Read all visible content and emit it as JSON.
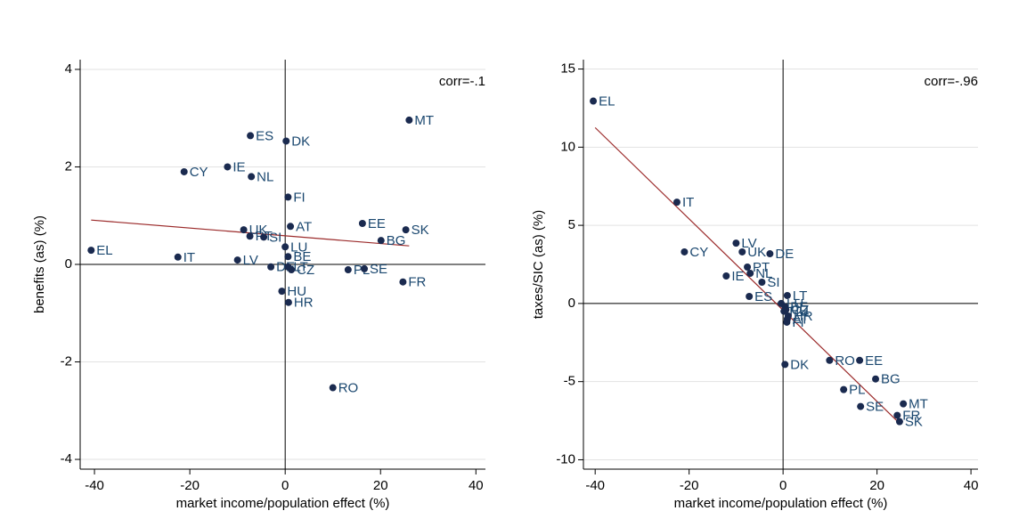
{
  "chart_data": [
    {
      "type": "scatter",
      "xlabel": "market income/population effect (%)",
      "ylabel": "benefits (as) (%)",
      "annotation": "corr=-.1",
      "xlim": [
        -43,
        42
      ],
      "ylim": [
        -4.2,
        4.2
      ],
      "xticks": [
        -40,
        -20,
        0,
        20,
        40
      ],
      "yticks": [
        -4,
        -2,
        0,
        2,
        4
      ],
      "grid": true,
      "xline": 0,
      "yline": 0,
      "points": {
        "color": "#1a2a4f",
        "labels": [
          "EL",
          "IT",
          "CY",
          "IE",
          "NL",
          "ES",
          "DK",
          "MT",
          "FI",
          "AT",
          "EE",
          "SK",
          "BG",
          "UK",
          "PT",
          "SI",
          "LU",
          "BE",
          "LV",
          "DE",
          "LT",
          "CZ",
          "PL",
          "SE",
          "FR",
          "HU",
          "HR",
          "RO"
        ],
        "x": [
          -40.7,
          -22.5,
          -21.2,
          -12.1,
          -7.1,
          -7.3,
          0.2,
          26,
          0.6,
          1.1,
          16.2,
          25.3,
          20.1,
          -8.7,
          -7.4,
          -4.5,
          0,
          0.6,
          -10,
          -3,
          0.6,
          1.3,
          13.2,
          16.6,
          24.7,
          -0.7,
          0.7,
          10
        ],
        "y": [
          0.29,
          0.15,
          1.9,
          2.0,
          1.8,
          2.64,
          2.53,
          2.96,
          1.38,
          0.78,
          0.84,
          0.71,
          0.49,
          0.71,
          0.58,
          0.56,
          0.36,
          0.16,
          0.09,
          -0.05,
          -0.05,
          -0.11,
          -0.11,
          -0.09,
          -0.36,
          -0.55,
          -0.78,
          -2.53
        ]
      },
      "fit": {
        "color": "#9b2a2a",
        "x": [
          -40.7,
          26
        ],
        "y": [
          0.91,
          0.38
        ]
      }
    },
    {
      "type": "scatter",
      "xlabel": "market income/population effect (%)",
      "ylabel": "taxes/SIC (as) (%)",
      "annotation": "corr=-.96",
      "xlim": [
        -42.5,
        41.5
      ],
      "ylim": [
        -10.6,
        15.6
      ],
      "xticks": [
        -40,
        -20,
        0,
        20,
        40
      ],
      "yticks": [
        -10,
        -5,
        0,
        5,
        10,
        15
      ],
      "grid": true,
      "xline": 0,
      "yline": 0,
      "points": {
        "color": "#1a2a4f",
        "labels": [
          "EL",
          "IT",
          "CY",
          "LV",
          "UK",
          "DE",
          "PT",
          "NL",
          "SI",
          "IE",
          "ES",
          "LT",
          "LU",
          "BE",
          "CZ",
          "HU",
          "AT",
          "HR",
          "FI",
          "DK",
          "RO",
          "EE",
          "BG",
          "PL",
          "SE",
          "MT",
          "FR",
          "SK"
        ],
        "x": [
          -40.4,
          -22.6,
          -21,
          -10,
          -8.7,
          -2.8,
          -7.6,
          -7,
          -4.5,
          -12.1,
          -7.2,
          0.9,
          -0.4,
          0.4,
          0.6,
          0.2,
          0.9,
          1.1,
          0.8,
          0.4,
          9.9,
          16.3,
          19.7,
          12.9,
          16.5,
          25.6,
          24.3,
          24.8
        ],
        "y": [
          12.95,
          6.48,
          3.3,
          3.86,
          3.3,
          3.18,
          2.33,
          1.93,
          1.36,
          1.76,
          0.45,
          0.51,
          0,
          -0.2,
          -0.4,
          -0.5,
          -1.0,
          -0.8,
          -1.2,
          -3.9,
          -3.64,
          -3.64,
          -4.83,
          -5.51,
          -6.59,
          -6.42,
          -7.16,
          -7.56
        ]
      },
      "fit": {
        "color": "#9b2a2a",
        "x": [
          -40,
          24.8
        ],
        "y": [
          11.25,
          -7.67
        ]
      }
    }
  ]
}
